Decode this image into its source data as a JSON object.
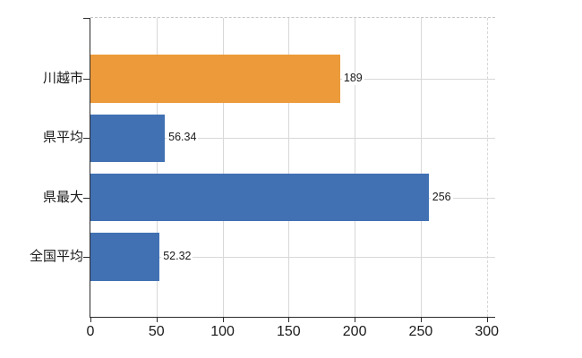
{
  "chart_data": {
    "type": "bar",
    "orientation": "horizontal",
    "title": "",
    "xlabel": "",
    "ylabel": "",
    "categories": [
      "川越市",
      "県平均",
      "県最大",
      "全国平均"
    ],
    "values": [
      189,
      56.34,
      256,
      52.32
    ],
    "value_labels": [
      "189",
      "56.34",
      "256",
      "52.32"
    ],
    "bar_colors": [
      "#EC9A3A",
      "#4171B3",
      "#4171B3",
      "#4171B3"
    ],
    "xlim": [
      0,
      300
    ],
    "xticks": [
      "0",
      "50",
      "100",
      "150",
      "200",
      "250",
      "300"
    ],
    "grid": true,
    "legend": false,
    "gridline_style": {
      "color": "#D8D8D8",
      "top_border": "dashed",
      "last_vertical": "dashed"
    },
    "axis_color": "#2B2B2B",
    "text_color": "#1A1A1A",
    "background": "#FFFFFF"
  }
}
